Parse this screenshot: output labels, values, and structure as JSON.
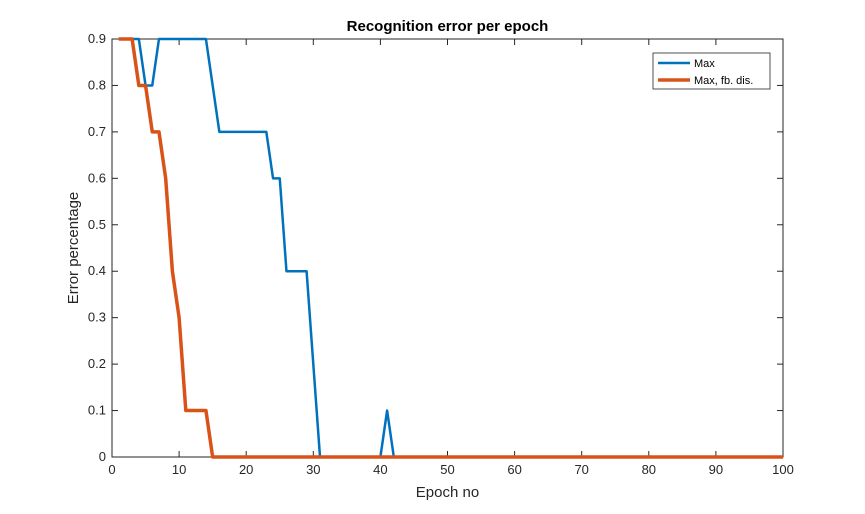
{
  "chart_data": {
    "type": "line",
    "title": "Recognition error per epoch",
    "xlabel": "Epoch no",
    "ylabel": "Error percentage",
    "xlim": [
      0,
      100
    ],
    "ylim": [
      0,
      0.9
    ],
    "xticks": [
      0,
      10,
      20,
      30,
      40,
      50,
      60,
      70,
      80,
      90,
      100
    ],
    "yticks": [
      0,
      0.1,
      0.2,
      0.3,
      0.4,
      0.5,
      0.6,
      0.7,
      0.8,
      0.9
    ],
    "grid": false,
    "legend_position": "top-right",
    "series": [
      {
        "name": "Max",
        "color": "#0072BD",
        "x": [
          1,
          2,
          3,
          4,
          5,
          6,
          7,
          8,
          9,
          10,
          11,
          12,
          13,
          14,
          15,
          16,
          17,
          18,
          19,
          20,
          21,
          22,
          23,
          24,
          25,
          26,
          27,
          28,
          29,
          30,
          31,
          32,
          33,
          34,
          35,
          36,
          37,
          38,
          39,
          40,
          41,
          42,
          43,
          100
        ],
        "values": [
          0.9,
          0.9,
          0.9,
          0.9,
          0.8,
          0.8,
          0.9,
          0.9,
          0.9,
          0.9,
          0.9,
          0.9,
          0.9,
          0.9,
          0.8,
          0.7,
          0.7,
          0.7,
          0.7,
          0.7,
          0.7,
          0.7,
          0.7,
          0.6,
          0.6,
          0.4,
          0.4,
          0.4,
          0.4,
          0.2,
          0,
          0,
          0,
          0,
          0,
          0,
          0,
          0,
          0,
          0,
          0.1,
          0,
          0,
          0
        ]
      },
      {
        "name": "Max, fb. dis.",
        "color": "#D95319",
        "x": [
          1,
          2,
          3,
          4,
          5,
          6,
          7,
          8,
          9,
          10,
          11,
          12,
          13,
          14,
          15,
          16,
          100
        ],
        "values": [
          0.9,
          0.9,
          0.9,
          0.8,
          0.8,
          0.7,
          0.7,
          0.6,
          0.4,
          0.3,
          0.1,
          0.1,
          0.1,
          0.1,
          0,
          0,
          0
        ]
      }
    ]
  }
}
